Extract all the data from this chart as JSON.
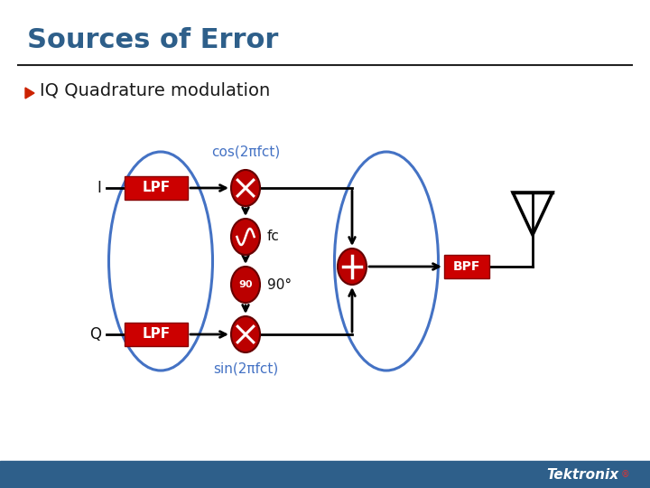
{
  "title": "Sources of Error",
  "subtitle": "IQ Quadrature modulation",
  "bg_color": "#ffffff",
  "title_color": "#2e5f8a",
  "subtitle_color": "#1a1a1a",
  "tektronix_bar_color": "#2e5f8a",
  "bullet_color": "#cc2200",
  "lpf_color": "#cc0000",
  "bpf_color": "#cc0000",
  "circle_color": "#bb0000",
  "circle_edge": "#660000",
  "ellipse_color": "#4472c4",
  "line_color": "#000000",
  "cos_label": "cos(2πfct)",
  "sin_label": "sin(2πfct)",
  "fc_label": "fc",
  "deg90_label": "90°",
  "I_label": "I",
  "Q_label": "Q",
  "lpf_label": "LPF",
  "bpf_label": "BPF",
  "deg90_num": "90"
}
